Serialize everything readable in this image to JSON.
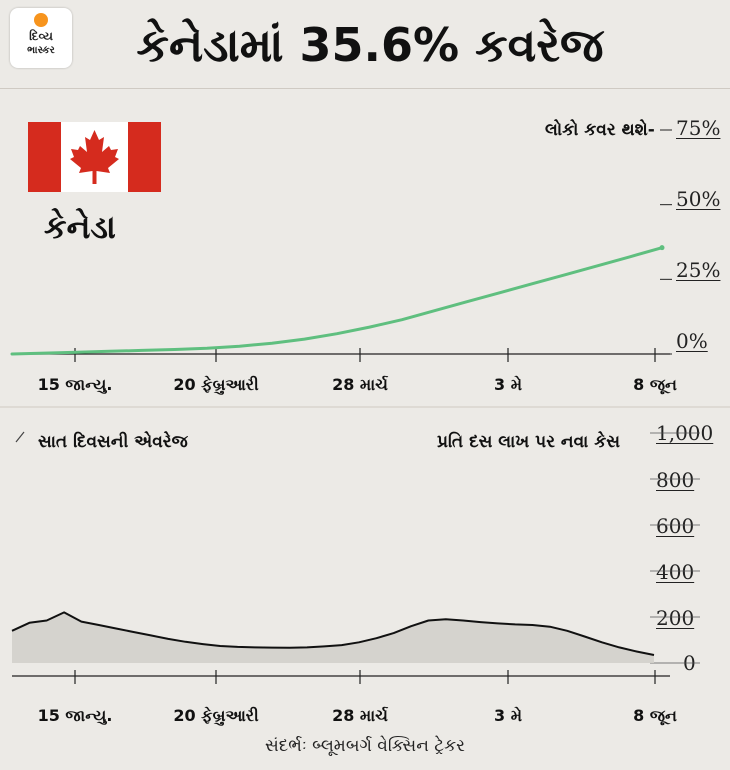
{
  "logo": {
    "line1": "દિવ્ય",
    "line2": "ભાસ્કર"
  },
  "title": "કેનેડામાં 35.6% કવરેજ",
  "country": "કેનેડા",
  "source": "સંદર્ભઃ બ્લૂમબર્ગ વેક્સિન ટ્રેકર",
  "colors": {
    "coverage_line": "#5fbf7f",
    "cases_line": "#111111",
    "cases_fill": "#d3d0cb",
    "flag_red": "#d52b1e"
  },
  "chart_data": [
    {
      "type": "line",
      "title": "લોકો કવર થશે-",
      "x_tick_labels": [
        "15 જાન્યુ.",
        "20 ફેબ્રુઆરી",
        "28 માર્ચ",
        "3 મે",
        "8 જૂન"
      ],
      "y_tick_labels": [
        "75%",
        "50%",
        "25%",
        "0%"
      ],
      "yticks": [
        75,
        50,
        25,
        0
      ],
      "ylim": [
        0,
        75
      ],
      "grid": false,
      "series": [
        {
          "values": [
            0,
            0.3,
            0.6,
            0.9,
            1.2,
            1.5,
            1.9,
            2.6,
            3.6,
            5.0,
            6.8,
            9.0,
            11.5,
            14.5,
            17.5,
            20.5,
            23.5,
            26.5,
            29.5,
            32.5,
            35.6
          ]
        }
      ]
    },
    {
      "type": "area",
      "title": "સાત દિવસની એવરેજ",
      "subtitle": "પ્રતિ દસ લાખ પર નવા કેસ",
      "x_tick_labels": [
        "15 જાન્યુ.",
        "20 ફેબ્રુઆરી",
        "28 માર્ચ",
        "3 મે",
        "8 જૂન"
      ],
      "y_tick_labels": [
        "1,000",
        "800",
        "600",
        "400",
        "200",
        "0"
      ],
      "yticks": [
        1000,
        800,
        600,
        400,
        200,
        0
      ],
      "ylim": [
        0,
        1000
      ],
      "grid": false,
      "series": [
        {
          "values": [
            140,
            175,
            185,
            220,
            180,
            165,
            150,
            135,
            120,
            105,
            92,
            82,
            74,
            70,
            68,
            67,
            66,
            68,
            72,
            78,
            90,
            108,
            130,
            160,
            185,
            190,
            185,
            178,
            172,
            168,
            165,
            158,
            140,
            115,
            90,
            68,
            50,
            35
          ]
        }
      ]
    }
  ]
}
